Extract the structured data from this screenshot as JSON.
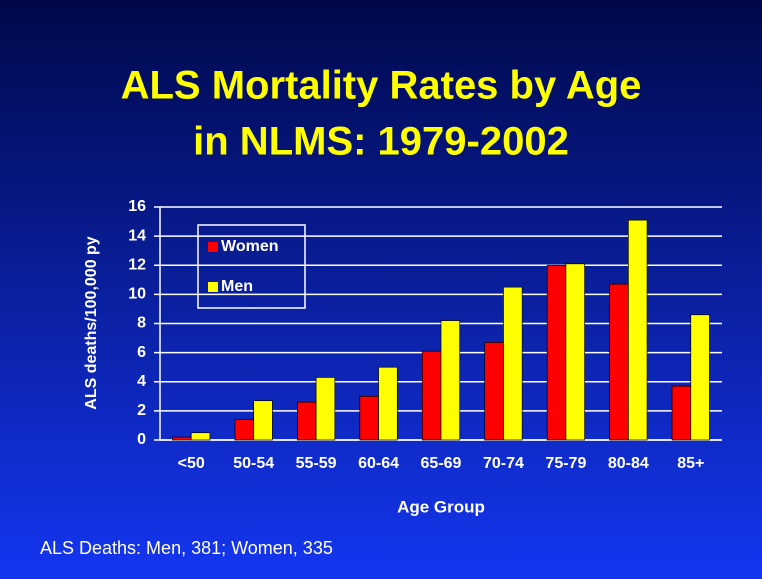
{
  "chart_data": {
    "type": "bar",
    "title": [
      "ALS Mortality Rates by Age",
      "in NLMS: 1979-2002"
    ],
    "y_label": "ALS deaths/100,000  py",
    "x_label": "Age Group",
    "footnote": "ALS Deaths: Men, 381; Women, 335",
    "categories": [
      "<50",
      "50-54",
      "55-59",
      "60-64",
      "65-69",
      "70-74",
      "75-79",
      "80-84",
      "85+"
    ],
    "series": [
      {
        "name": "Women",
        "color": "#ff0000",
        "values": [
          0.2,
          1.4,
          2.6,
          3.0,
          6.1,
          6.7,
          12.0,
          10.7,
          3.7
        ]
      },
      {
        "name": "Men",
        "color": "#ffff00",
        "values": [
          0.5,
          2.7,
          4.3,
          5.0,
          8.2,
          10.5,
          12.1,
          15.1,
          8.6
        ]
      }
    ],
    "ylim": [
      0,
      16
    ],
    "yticks": [
      0,
      2,
      4,
      6,
      8,
      10,
      12,
      14,
      16
    ],
    "grid": true,
    "legend": "top-left"
  }
}
